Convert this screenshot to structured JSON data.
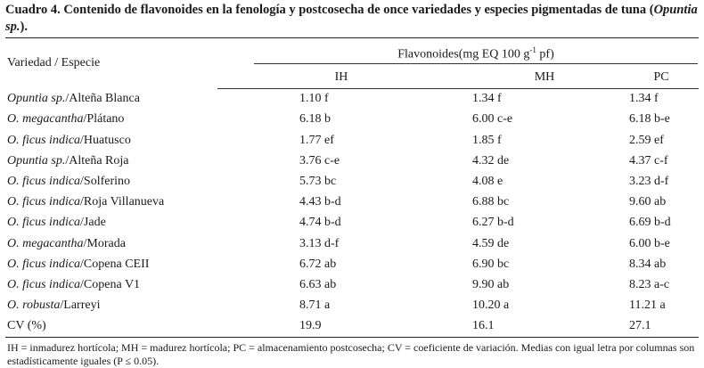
{
  "caption": {
    "label": "Cuadro 4.",
    "text": "Contenido de flavonoides en la fenología y postcosecha de once variedades y especies pigmentadas de tuna (",
    "italic": "Opuntia sp.",
    "end": ")."
  },
  "table": {
    "header_variety": "Variedad / Especie",
    "header_group_prefix": "Flavonoides(mg EQ 100 g",
    "header_group_sup": "-1",
    "header_group_suffix": " pf)",
    "columns": [
      "IH",
      "MH",
      "PC"
    ],
    "rows": [
      {
        "species": "Opuntia sp.",
        "variety": "/Alteña Blanca",
        "ih": "1.10 f",
        "mh": "1.34 f",
        "pc": "1.34 f"
      },
      {
        "species": "O. megacantha",
        "variety": "/Plátano",
        "ih": "6.18 b",
        "mh": "6.00 c-e",
        "pc": "6.18 b-e"
      },
      {
        "species": "O. ficus indica",
        "variety": "/Huatusco",
        "ih": "1.77 ef",
        "mh": "1.85 f",
        "pc": "2.59 ef"
      },
      {
        "species": "Opuntia sp.",
        "variety": "/Alteña Roja",
        "ih": "3.76 c-e",
        "mh": "4.32 de",
        "pc": "4.37 c-f"
      },
      {
        "species": "O. ficus indica",
        "variety": "/Solferino",
        "ih": "5.73 bc",
        "mh": "4.08 e",
        "pc": "3.23 d-f"
      },
      {
        "species": "O. ficus indica",
        "variety": "/Roja Villanueva",
        "ih": "4.43 b-d",
        "mh": "6.88 bc",
        "pc": "9.60 ab"
      },
      {
        "species": "O. ficus indica",
        "variety": "/Jade",
        "ih": "4.74 b-d",
        "mh": "6.27 b-d",
        "pc": "6.69 b-d"
      },
      {
        "species": "O. megacantha",
        "variety": "/Morada",
        "ih": "3.13 d-f",
        "mh": "4.59 de",
        "pc": "6.00 b-e"
      },
      {
        "species": "O. ficus indica",
        "variety": "/Copena CEII",
        "ih": "6.72 ab",
        "mh": "6.90 bc",
        "pc": "8.34 ab"
      },
      {
        "species": "O. ficus indica",
        "variety": "/Copena V1",
        "ih": "6.63 ab",
        "mh": "9.90 ab",
        "pc": "8.23 a-c"
      },
      {
        "species": "O. robusta",
        "variety": "/Larreyi",
        "ih": "8.71 a",
        "mh": "10.20 a",
        "pc": "11.21 a"
      }
    ],
    "cv_row": {
      "label": "CV (%)",
      "ih": "19.9",
      "mh": "16.1",
      "pc": "27.1"
    }
  },
  "footnote": "IH = inmadurez hortícola; MH = madurez hortícola; PC = almacenamiento postcosecha; CV = coeficiente de variación. Medias con igual letra por columnas son estadísticamente iguales (P ≤ 0.05)."
}
